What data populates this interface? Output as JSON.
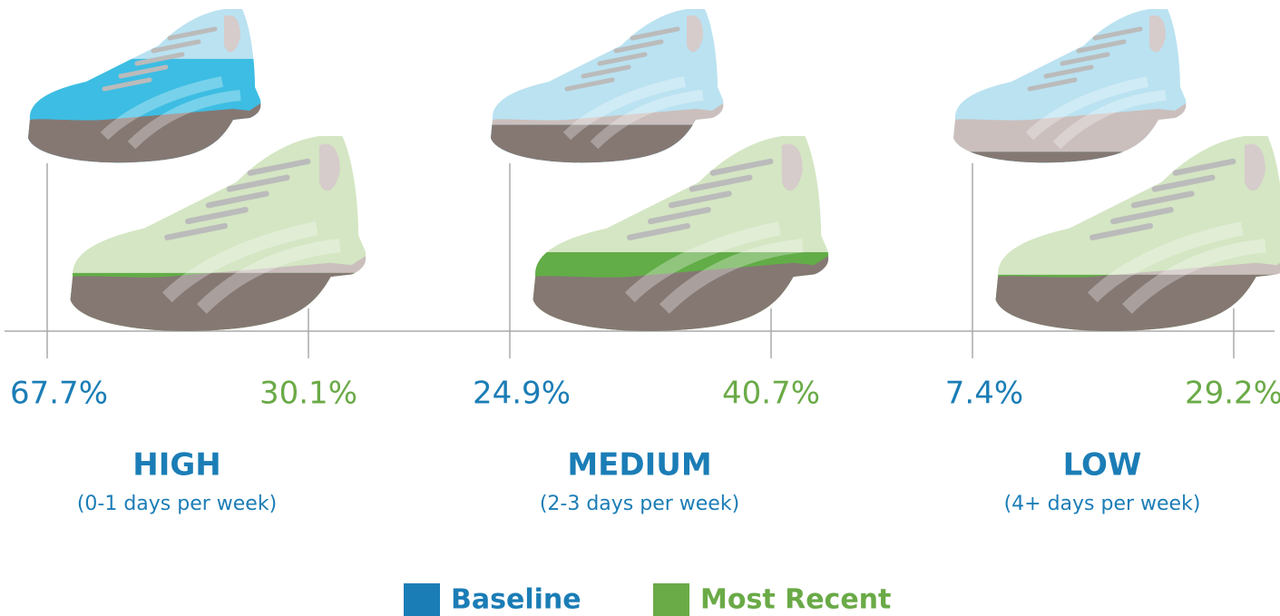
{
  "chart_data": {
    "type": "pictograph",
    "categories": [
      "HIGH",
      "MEDIUM",
      "LOW"
    ],
    "subtitles": [
      "(0-1 days per week)",
      "(2-3 days per week)",
      "(4+ days per week)"
    ],
    "ylim": [
      0,
      100
    ],
    "series": [
      {
        "name": "Baseline",
        "color": "#1b7db6",
        "fill_color": "#3dbde3",
        "light_color": "#b3dff0",
        "values": [
          67.7,
          24.9,
          7.4
        ],
        "value_labels": [
          "67.7%",
          "24.9%",
          "7.4%"
        ]
      },
      {
        "name": "Most Recent",
        "color": "#6aaa47",
        "fill_color": "#62ad47",
        "light_color": "#cfe3bd",
        "values": [
          30.1,
          40.7,
          29.2
        ],
        "value_labels": [
          "30.1%",
          "40.7%",
          "29.2%"
        ]
      }
    ]
  }
}
